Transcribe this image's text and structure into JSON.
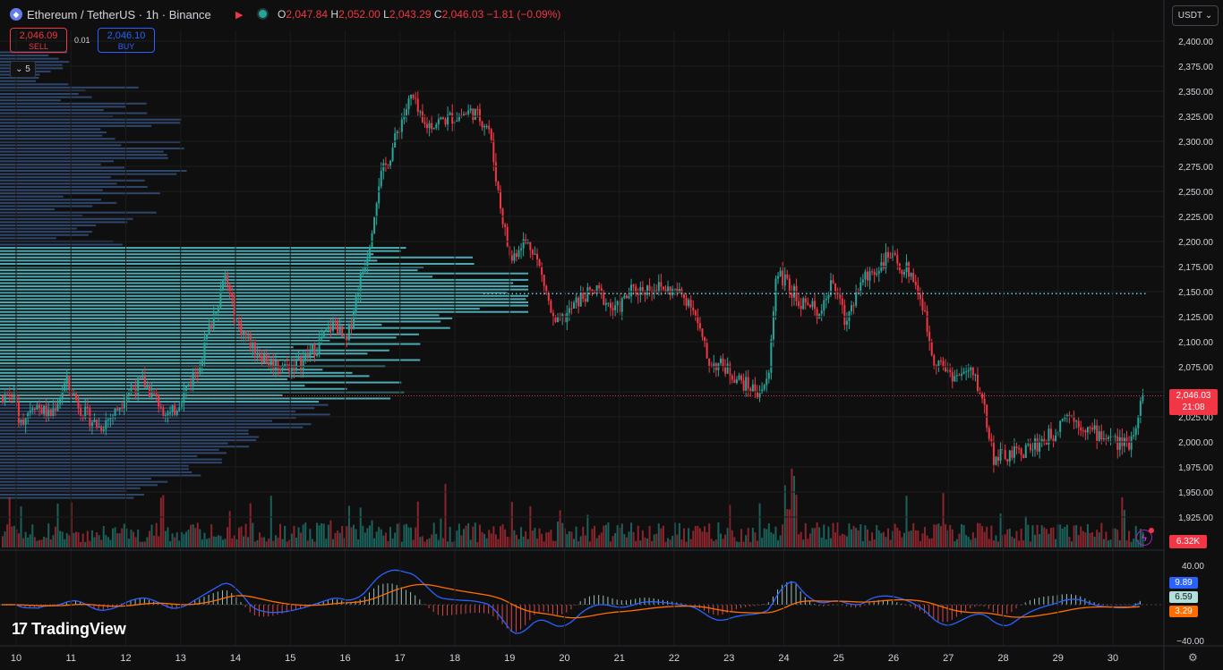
{
  "header": {
    "symbol_icon": "ethereum-icon",
    "title": "Ethereum / TetherUS · 1h · Binance",
    "ohlc": {
      "o_key": "O",
      "o": "2,047.84",
      "h_key": "H",
      "h": "2,052.00",
      "l_key": "L",
      "l": "2,043.29",
      "c_key": "C",
      "c": "2,046.03",
      "change": "−1.81 (−0.09%)"
    }
  },
  "trade": {
    "sell_price": "2,046.09",
    "sell_label": "SELL",
    "spread": "0.01",
    "buy_price": "2,046.10",
    "buy_label": "BUY"
  },
  "indicator_toggle": "5",
  "currency": "USDT",
  "colors": {
    "up": "#26a69a",
    "down": "#f23645",
    "bg": "#0f0f0f",
    "vp": "#5ed0d8",
    "macd": "#2962ff",
    "signal": "#ff6d00"
  },
  "price_label": {
    "price": "2,046.03",
    "countdown": "21:08"
  },
  "volume_label": "6.32K",
  "indicator_labels": {
    "macd": "9.89",
    "hist": "6.59",
    "signal": "3.29"
  },
  "brand": "TradingView",
  "chart_data": {
    "type": "candlestick",
    "symbol": "ETHUSDT",
    "interval": "1h",
    "xlabel": "",
    "ylabel": "",
    "ylim": [
      1937,
      2400
    ],
    "price_ticks": [
      "2,400.00",
      "2,375.00",
      "2,350.00",
      "2,325.00",
      "2,300.00",
      "2,275.00",
      "2,250.00",
      "2,225.00",
      "2,200.00",
      "2,175.00",
      "2,150.00",
      "2,125.00",
      "2,100.00",
      "2,075.00",
      "2,050.00",
      "2,025.00",
      "2,000.00",
      "1,975.00",
      "1,950.00",
      "1,925.00"
    ],
    "date_ticks": [
      "10",
      "11",
      "12",
      "13",
      "14",
      "15",
      "16",
      "17",
      "18",
      "19",
      "20",
      "21",
      "22",
      "23",
      "24",
      "25",
      "26",
      "27",
      "28",
      "29",
      "30"
    ],
    "indicator_ticks": [
      "40.00",
      "−40.00"
    ],
    "poc_price": 2148,
    "last_price": 2046.03,
    "close_path": [
      [
        10.0,
        2012
      ],
      [
        10.3,
        2040
      ],
      [
        10.6,
        2025
      ],
      [
        10.9,
        2060
      ],
      [
        11.2,
        2030
      ],
      [
        11.5,
        2015
      ],
      [
        11.8,
        2030
      ],
      [
        12.0,
        2050
      ],
      [
        12.3,
        2060
      ],
      [
        12.5,
        2045
      ],
      [
        12.8,
        2025
      ],
      [
        13.0,
        2045
      ],
      [
        13.3,
        2075
      ],
      [
        13.6,
        2130
      ],
      [
        13.8,
        2165
      ],
      [
        14.0,
        2120
      ],
      [
        14.3,
        2095
      ],
      [
        14.6,
        2080
      ],
      [
        14.9,
        2075
      ],
      [
        15.2,
        2080
      ],
      [
        15.5,
        2098
      ],
      [
        15.8,
        2120
      ],
      [
        16.0,
        2095
      ],
      [
        16.2,
        2150
      ],
      [
        16.4,
        2190
      ],
      [
        16.6,
        2260
      ],
      [
        16.8,
        2285
      ],
      [
        17.0,
        2320
      ],
      [
        17.2,
        2345
      ],
      [
        17.4,
        2315
      ],
      [
        17.7,
        2320
      ],
      [
        18.0,
        2325
      ],
      [
        18.3,
        2330
      ],
      [
        18.6,
        2315
      ],
      [
        18.8,
        2240
      ],
      [
        19.0,
        2180
      ],
      [
        19.2,
        2200
      ],
      [
        19.4,
        2195
      ],
      [
        19.6,
        2160
      ],
      [
        19.8,
        2115
      ],
      [
        20.0,
        2125
      ],
      [
        20.3,
        2145
      ],
      [
        20.6,
        2150
      ],
      [
        20.9,
        2130
      ],
      [
        21.2,
        2150
      ],
      [
        21.6,
        2155
      ],
      [
        22.0,
        2150
      ],
      [
        22.3,
        2140
      ],
      [
        22.6,
        2080
      ],
      [
        22.9,
        2075
      ],
      [
        23.2,
        2060
      ],
      [
        23.5,
        2050
      ],
      [
        23.7,
        2060
      ],
      [
        23.85,
        2175
      ],
      [
        24.0,
        2160
      ],
      [
        24.3,
        2140
      ],
      [
        24.6,
        2130
      ],
      [
        24.9,
        2160
      ],
      [
        25.1,
        2120
      ],
      [
        25.4,
        2160
      ],
      [
        25.7,
        2175
      ],
      [
        25.9,
        2185
      ],
      [
        26.1,
        2175
      ],
      [
        26.3,
        2170
      ],
      [
        26.5,
        2140
      ],
      [
        26.7,
        2085
      ],
      [
        26.9,
        2075
      ],
      [
        27.1,
        2065
      ],
      [
        27.4,
        2070
      ],
      [
        27.6,
        2045
      ],
      [
        27.8,
        1985
      ],
      [
        28.0,
        1985
      ],
      [
        28.3,
        1990
      ],
      [
        28.6,
        1998
      ],
      [
        28.9,
        2008
      ],
      [
        29.1,
        2030
      ],
      [
        29.3,
        2022
      ],
      [
        29.6,
        2010
      ],
      [
        29.9,
        2005
      ],
      [
        30.1,
        1998
      ],
      [
        30.3,
        2000
      ],
      [
        30.45,
        2030
      ],
      [
        30.55,
        2046
      ]
    ],
    "volume_profile": {
      "type": "bar",
      "orientation": "horizontal",
      "peak_price": 2148,
      "value_area": [
        2040,
        2195
      ]
    },
    "macd": {
      "type": "line",
      "range": [
        -40,
        40
      ],
      "series": [
        {
          "name": "macd",
          "last": 9.89
        },
        {
          "name": "signal",
          "last": 3.29
        },
        {
          "name": "histogram",
          "last": 6.59
        }
      ]
    }
  }
}
